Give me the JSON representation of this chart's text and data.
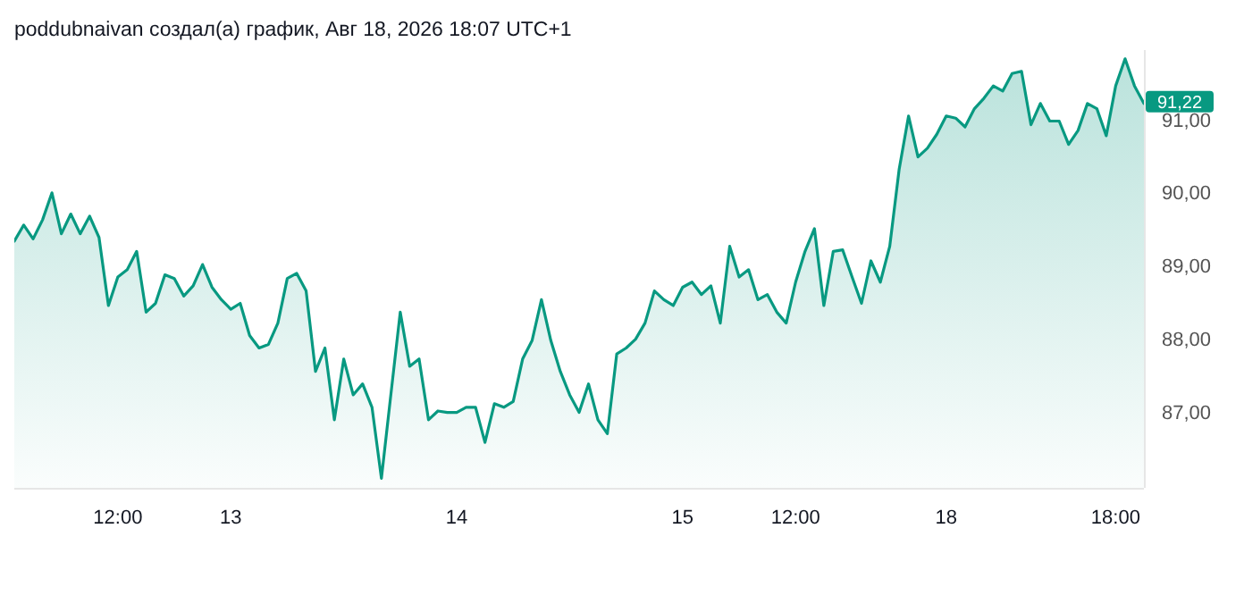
{
  "chart_data": {
    "type": "area",
    "title": "poddubnaivan создал(а) график, Авг 18, 2026 18:07 UTC+1",
    "categories": [
      null,
      null,
      null,
      null,
      null,
      null,
      null,
      null,
      null,
      null,
      null,
      "12:00",
      null,
      null,
      null,
      null,
      null,
      null,
      null,
      null,
      null,
      null,
      null,
      "13",
      null,
      null,
      null,
      null,
      null,
      null,
      null,
      null,
      null,
      null,
      null,
      null,
      null,
      null,
      null,
      null,
      null,
      null,
      null,
      null,
      null,
      null,
      null,
      "14",
      null,
      null,
      null,
      null,
      null,
      null,
      null,
      null,
      null,
      null,
      null,
      null,
      null,
      null,
      null,
      null,
      null,
      null,
      null,
      null,
      null,
      null,
      null,
      "15",
      null,
      null,
      null,
      null,
      null,
      null,
      null,
      null,
      null,
      null,
      null,
      "12:00",
      null,
      null,
      null,
      null,
      null,
      null,
      null,
      null,
      null,
      null,
      null,
      null,
      null,
      null,
      null,
      "18",
      null,
      null,
      null,
      null,
      null,
      null,
      null,
      null,
      null,
      null,
      null,
      null,
      null,
      null,
      null,
      null,
      null,
      "18:00",
      null,
      null,
      null
    ],
    "series": [
      {
        "color": "#089981",
        "values": [
          89.34,
          89.56,
          89.37,
          89.63,
          90.0,
          89.44,
          89.71,
          89.44,
          89.68,
          89.39,
          88.46,
          88.85,
          88.95,
          89.2,
          88.37,
          88.49,
          88.88,
          88.83,
          88.59,
          88.73,
          89.02,
          88.71,
          88.54,
          88.41,
          88.49,
          88.05,
          87.88,
          87.93,
          88.22,
          88.83,
          88.9,
          88.66,
          87.56,
          87.88,
          86.9,
          87.73,
          87.24,
          87.39,
          87.07,
          86.1,
          87.24,
          88.37,
          87.63,
          87.73,
          86.9,
          87.02,
          87.0,
          87.0,
          87.07,
          87.07,
          86.59,
          87.12,
          87.07,
          87.15,
          87.73,
          87.98,
          88.54,
          87.98,
          87.56,
          87.24,
          87.0,
          87.39,
          86.9,
          86.71,
          87.8,
          87.88,
          88.0,
          88.22,
          88.66,
          88.54,
          88.46,
          88.71,
          88.78,
          88.61,
          88.73,
          88.22,
          89.27,
          88.85,
          88.95,
          88.54,
          88.61,
          88.37,
          88.22,
          88.78,
          89.2,
          89.51,
          88.46,
          89.2,
          89.22,
          88.85,
          88.49,
          89.07,
          88.78,
          89.27,
          90.32,
          91.05,
          90.49,
          90.61,
          90.8,
          91.05,
          91.02,
          90.9,
          91.15,
          91.29,
          91.46,
          91.39,
          91.63,
          91.66,
          90.93,
          91.22,
          90.98,
          90.98,
          90.66,
          90.85,
          91.22,
          91.15,
          90.78,
          91.46,
          91.83,
          91.46,
          91.22
        ]
      }
    ],
    "ylim": [
      85.97,
      91.95
    ],
    "yticks": [
      {
        "value": 87,
        "label": "87,00"
      },
      {
        "value": 88,
        "label": "88,00"
      },
      {
        "value": 89,
        "label": "89,00"
      },
      {
        "value": 90,
        "label": "90,00"
      },
      {
        "value": 91,
        "label": "91,00"
      }
    ],
    "annotations": [
      "91,22"
    ],
    "grid": false
  }
}
